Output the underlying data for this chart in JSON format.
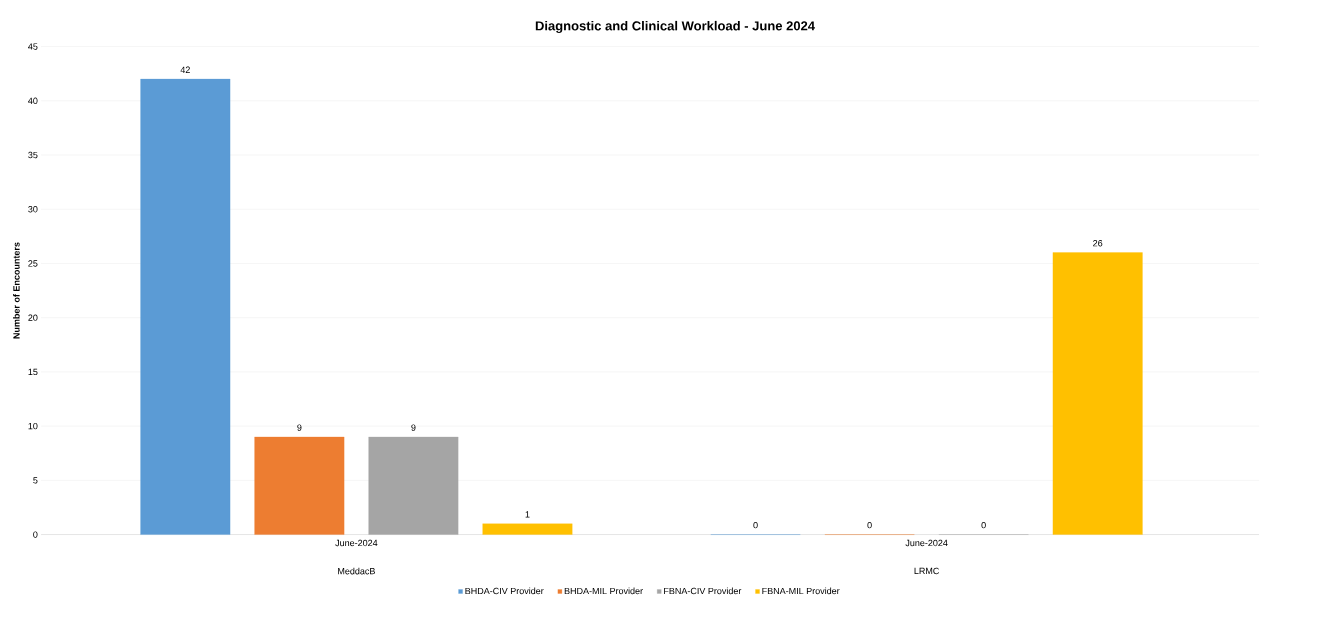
{
  "chart_data": {
    "type": "bar",
    "title": "Diagnostic and Clinical Workload - June 2024",
    "ylabel": "Number of Encounters",
    "categories": [
      "June-2024",
      "June-2024"
    ],
    "annotations": [
      "MeddacB",
      "LRMC"
    ],
    "series": [
      {
        "name": "BHDA-CIV Provider",
        "color": "#5b9bd5",
        "values": [
          42,
          0
        ]
      },
      {
        "name": "BHDA-MIL Provider",
        "color": "#ed7d31",
        "values": [
          9,
          0
        ]
      },
      {
        "name": "FBNA-CIV Provider",
        "color": "#a5a5a5",
        "values": [
          9,
          0
        ]
      },
      {
        "name": "FBNA-MIL Provider",
        "color": "#ffc000",
        "values": [
          1,
          26
        ]
      }
    ],
    "ylim": [
      0,
      45
    ],
    "yticks": [
      0,
      5,
      10,
      15,
      20,
      25,
      30,
      35,
      40,
      45
    ],
    "grid": "y",
    "legend": "bottom",
    "data_labels": true
  }
}
